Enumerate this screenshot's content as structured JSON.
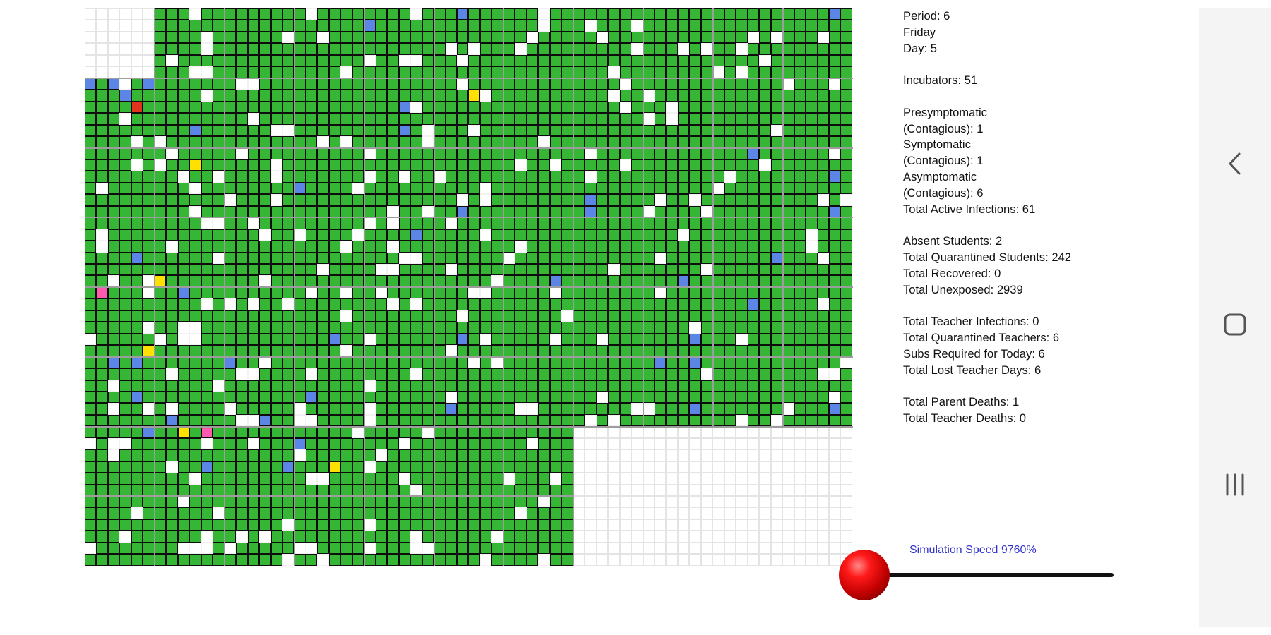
{
  "stats": {
    "period": "Period: 6",
    "weekday": "Friday",
    "day": "Day: 5",
    "incubators": "Incubators: 51",
    "presymptomatic_label": "Presymptomatic",
    "presymptomatic_value": "(Contagious): 1",
    "symptomatic_label": "Symptomatic",
    "symptomatic_value": "(Contagious): 1",
    "asymptomatic_label": "Asymptomatic",
    "asymptomatic_value": "(Contagious): 6",
    "total_active_infections": "Total Active Infections: 61",
    "absent_students": "Absent Students: 2",
    "total_quarantined_students": "Total Quarantined Students: 242",
    "total_recovered": "Total Recovered: 0",
    "total_unexposed": "Total Unexposed: 2939",
    "total_teacher_infections": "Total Teacher Infections: 0",
    "total_quarantined_teachers": "Total Quarantined Teachers: 6",
    "subs_required_today": "Subs Required for Today: 6",
    "total_lost_teacher_days": "Total Lost Teacher Days: 6",
    "total_parent_deaths": "Total Parent Deaths: 1",
    "total_teacher_deaths": "Total Teacher Deaths: 0"
  },
  "speed": {
    "label": "Simulation Speed 9760%",
    "value_percent": 9760,
    "slider_fraction": 0.0
  },
  "legend_colors": {
    "healthy": "#35b635",
    "vacant": "#ffffff",
    "presymptomatic": "#ffe000",
    "symptomatic": "#e0341f",
    "asymptomatic": "#ff5ab0",
    "quarantined": "#5b86e6",
    "knob": "#e00000"
  },
  "navbar": {
    "back": "back-icon",
    "home": "home-icon",
    "recents": "recents-icon"
  }
}
